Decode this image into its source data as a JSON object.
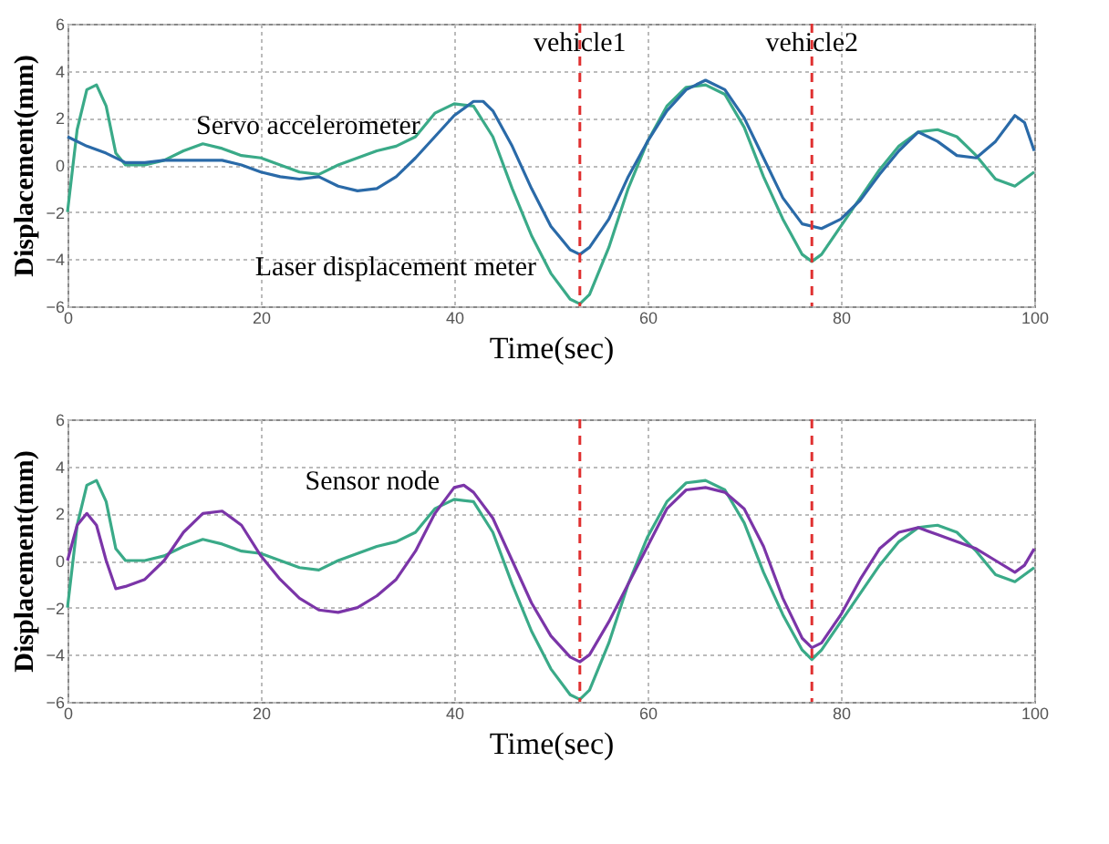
{
  "chart_data": [
    {
      "type": "line",
      "xlabel": "Time(sec)",
      "ylabel": "Displacement(mm)",
      "xlim": [
        0,
        100
      ],
      "ylim": [
        -6,
        6
      ],
      "xticks": [
        0,
        20,
        40,
        60,
        80,
        100
      ],
      "yticks": [
        -6,
        -4,
        -2,
        0,
        2,
        4,
        6
      ],
      "grid": true,
      "series": [
        {
          "color": "#3aaa88",
          "x": [
            0,
            1,
            2,
            3,
            4,
            5,
            6,
            8,
            10,
            12,
            14,
            16,
            18,
            20,
            22,
            24,
            26,
            28,
            30,
            32,
            34,
            36,
            38,
            40,
            42,
            44,
            46,
            48,
            50,
            52,
            53,
            54,
            56,
            58,
            60,
            62,
            64,
            66,
            68,
            70,
            72,
            74,
            76,
            77,
            78,
            80,
            82,
            84,
            86,
            88,
            90,
            92,
            94,
            96,
            98,
            100
          ],
          "values": [
            -2.0,
            1.5,
            3.2,
            3.4,
            2.5,
            0.5,
            0,
            0,
            0.2,
            0.6,
            0.9,
            0.7,
            0.4,
            0.3,
            0,
            -0.3,
            -0.4,
            0,
            0.3,
            0.6,
            0.8,
            1.2,
            2.2,
            2.6,
            2.5,
            1.2,
            -1.0,
            -3.0,
            -4.6,
            -5.7,
            -5.9,
            -5.5,
            -3.5,
            -1.0,
            1.0,
            2.5,
            3.3,
            3.4,
            3.0,
            1.6,
            -0.5,
            -2.3,
            -3.8,
            -4.1,
            -3.8,
            -2.6,
            -1.4,
            -0.2,
            0.8,
            1.4,
            1.5,
            1.2,
            0.4,
            -0.6,
            -0.9,
            -0.3
          ]
        },
        {
          "color": "#2a6aa8",
          "x": [
            0,
            2,
            4,
            6,
            8,
            10,
            12,
            14,
            16,
            18,
            20,
            22,
            24,
            26,
            28,
            30,
            32,
            34,
            36,
            38,
            40,
            42,
            43,
            44,
            46,
            48,
            50,
            52,
            53,
            54,
            56,
            58,
            60,
            62,
            64,
            66,
            68,
            70,
            72,
            74,
            76,
            78,
            80,
            82,
            84,
            86,
            88,
            90,
            92,
            94,
            96,
            98,
            99,
            100
          ],
          "values": [
            1.2,
            0.8,
            0.5,
            0.1,
            0.1,
            0.2,
            0.2,
            0.2,
            0.2,
            0,
            -0.3,
            -0.5,
            -0.6,
            -0.5,
            -0.9,
            -1.1,
            -1.0,
            -0.5,
            0.3,
            1.2,
            2.1,
            2.7,
            2.7,
            2.3,
            0.8,
            -1.0,
            -2.6,
            -3.6,
            -3.8,
            -3.5,
            -2.3,
            -0.5,
            1.0,
            2.3,
            3.2,
            3.6,
            3.2,
            2.0,
            0.3,
            -1.4,
            -2.5,
            -2.7,
            -2.3,
            -1.5,
            -0.4,
            0.6,
            1.4,
            1.0,
            0.4,
            0.3,
            1.0,
            2.1,
            1.8,
            0.6
          ]
        }
      ],
      "ref_lines": [
        {
          "axis": "x",
          "value": 53,
          "label": "vehicle1",
          "color": "#e03030",
          "line_style": "dashed"
        },
        {
          "axis": "x",
          "value": 77,
          "label": "vehicle2",
          "color": "#e03030",
          "line_style": "dashed"
        }
      ],
      "annotations": [
        {
          "text": "Servo accelerometer",
          "x": 38,
          "y": 1.4
        },
        {
          "text": "Laser displacement meter",
          "x": 50,
          "y": -4.6
        }
      ]
    },
    {
      "type": "line",
      "xlabel": "Time(sec)",
      "ylabel": "Displacement(mm)",
      "xlim": [
        0,
        100
      ],
      "ylim": [
        -6,
        6
      ],
      "xticks": [
        0,
        20,
        40,
        60,
        80,
        100
      ],
      "yticks": [
        -6,
        -4,
        -2,
        0,
        2,
        4,
        6
      ],
      "grid": true,
      "series": [
        {
          "color": "#3aaa88",
          "x": [
            0,
            1,
            2,
            3,
            4,
            5,
            6,
            8,
            10,
            12,
            14,
            16,
            18,
            20,
            22,
            24,
            26,
            28,
            30,
            32,
            34,
            36,
            38,
            40,
            42,
            44,
            46,
            48,
            50,
            52,
            53,
            54,
            56,
            58,
            60,
            62,
            64,
            66,
            68,
            70,
            72,
            74,
            76,
            77,
            78,
            80,
            82,
            84,
            86,
            88,
            90,
            92,
            94,
            96,
            98,
            100
          ],
          "values": [
            -2.0,
            1.5,
            3.2,
            3.4,
            2.5,
            0.5,
            0,
            0,
            0.2,
            0.6,
            0.9,
            0.7,
            0.4,
            0.3,
            0,
            -0.3,
            -0.4,
            0,
            0.3,
            0.6,
            0.8,
            1.2,
            2.2,
            2.6,
            2.5,
            1.2,
            -1.0,
            -3.0,
            -4.6,
            -5.7,
            -5.9,
            -5.5,
            -3.5,
            -1.0,
            1.0,
            2.5,
            3.3,
            3.4,
            3.0,
            1.6,
            -0.5,
            -2.3,
            -3.8,
            -4.2,
            -3.8,
            -2.6,
            -1.4,
            -0.2,
            0.8,
            1.4,
            1.5,
            1.2,
            0.4,
            -0.6,
            -0.9,
            -0.3
          ]
        },
        {
          "color": "#7b35a8",
          "x": [
            0,
            1,
            2,
            3,
            4,
            5,
            6,
            8,
            10,
            12,
            14,
            16,
            18,
            20,
            22,
            24,
            26,
            28,
            30,
            32,
            34,
            36,
            38,
            40,
            41,
            42,
            44,
            46,
            48,
            50,
            52,
            53,
            54,
            56,
            58,
            60,
            62,
            64,
            66,
            68,
            70,
            72,
            74,
            76,
            77,
            78,
            80,
            82,
            84,
            86,
            88,
            90,
            92,
            94,
            96,
            98,
            99,
            100
          ],
          "values": [
            0,
            1.5,
            2.0,
            1.5,
            0,
            -1.2,
            -1.1,
            -0.8,
            0,
            1.2,
            2.0,
            2.1,
            1.5,
            0.2,
            -0.8,
            -1.6,
            -2.1,
            -2.2,
            -2.0,
            -1.5,
            -0.8,
            0.4,
            2.0,
            3.1,
            3.2,
            2.9,
            1.8,
            0,
            -1.8,
            -3.2,
            -4.1,
            -4.3,
            -4.0,
            -2.6,
            -1.0,
            0.6,
            2.2,
            3.0,
            3.1,
            2.9,
            2.2,
            0.6,
            -1.6,
            -3.3,
            -3.7,
            -3.5,
            -2.3,
            -0.8,
            0.5,
            1.2,
            1.4,
            1.1,
            0.8,
            0.5,
            0,
            -0.5,
            -0.2,
            0.5
          ]
        }
      ],
      "ref_lines": [
        {
          "axis": "x",
          "value": 53,
          "label": null,
          "color": "#e03030",
          "line_style": "dashed"
        },
        {
          "axis": "x",
          "value": 77,
          "label": null,
          "color": "#e03030",
          "line_style": "dashed"
        }
      ],
      "annotations": [
        {
          "text": "Sensor node",
          "x": 40,
          "y": 3.1
        }
      ]
    }
  ]
}
